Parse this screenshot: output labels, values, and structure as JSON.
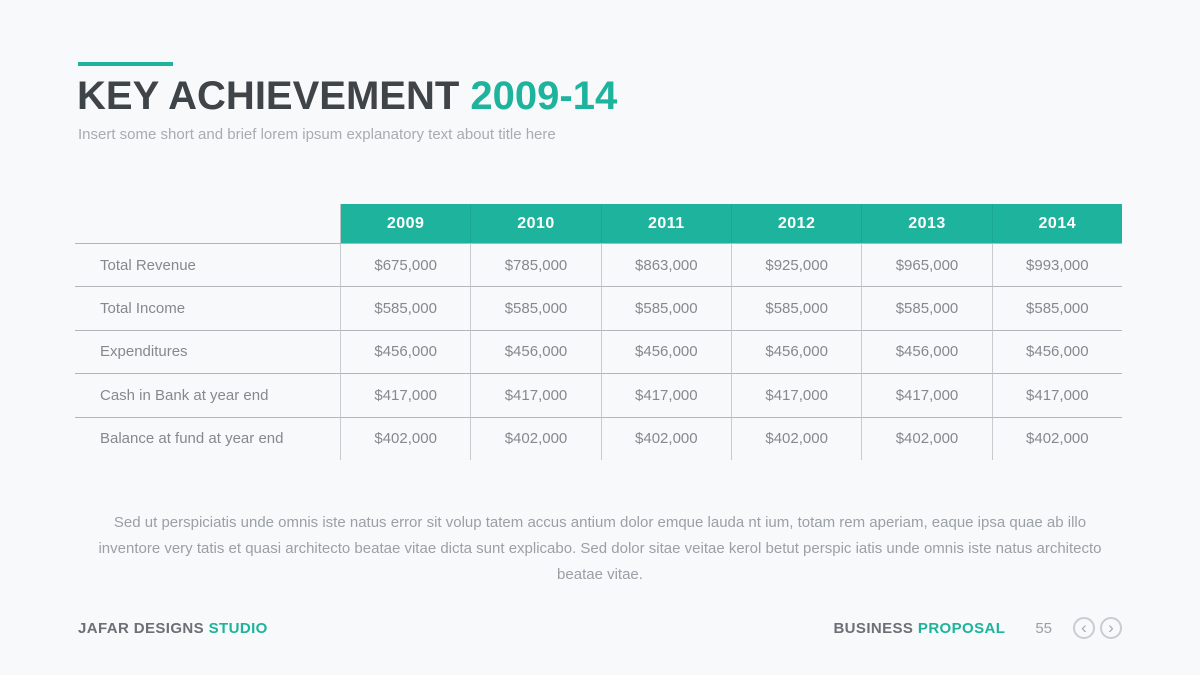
{
  "colors": {
    "accent": "#1db39c",
    "title_dark": "#3f4448",
    "text_gray": "#85898e",
    "background": "#f8f9fa"
  },
  "header": {
    "title_main": "KEY ACHIEVEMENT",
    "title_accent": "2009-14",
    "subtitle": "Insert some short and brief lorem ipsum explanatory text about title here"
  },
  "table": {
    "years": [
      "2009",
      "2010",
      "2011",
      "2012",
      "2013",
      "2014"
    ],
    "rows": [
      {
        "label": "Total Revenue",
        "values": [
          "$675,000",
          "$785,000",
          "$863,000",
          "$925,000",
          "$965,000",
          "$993,000"
        ]
      },
      {
        "label": "Total Income",
        "values": [
          "$585,000",
          "$585,000",
          "$585,000",
          "$585,000",
          "$585,000",
          "$585,000"
        ]
      },
      {
        "label": "Expenditures",
        "values": [
          "$456,000",
          "$456,000",
          "$456,000",
          "$456,000",
          "$456,000",
          "$456,000"
        ]
      },
      {
        "label": "Cash in Bank at year end",
        "values": [
          "$417,000",
          "$417,000",
          "$417,000",
          "$417,000",
          "$417,000",
          "$417,000"
        ]
      },
      {
        "label": "Balance at fund at year end",
        "values": [
          "$402,000",
          "$402,000",
          "$402,000",
          "$402,000",
          "$402,000",
          "$402,000"
        ]
      }
    ]
  },
  "body_text": "Sed ut perspiciatis unde omnis iste natus error sit volup tatem accus antium dolor emque lauda nt ium, totam rem aperiam, eaque ipsa quae ab illo inventore very tatis et quasi architecto beatae vitae dicta sunt explicabo.  Sed dolor sitae veitae kerol betut perspic iatis unde omnis iste natus architecto beatae vitae.",
  "footer": {
    "brand_main": "JAFAR DESIGNS",
    "brand_accent": "STUDIO",
    "doc_main": "BUSINESS",
    "doc_accent": "PROPOSAL",
    "page_number": "55",
    "nav_prev_icon": "chevron-left",
    "nav_next_icon": "chevron-right",
    "nav_prev_glyph": "‹",
    "nav_next_glyph": "›"
  }
}
